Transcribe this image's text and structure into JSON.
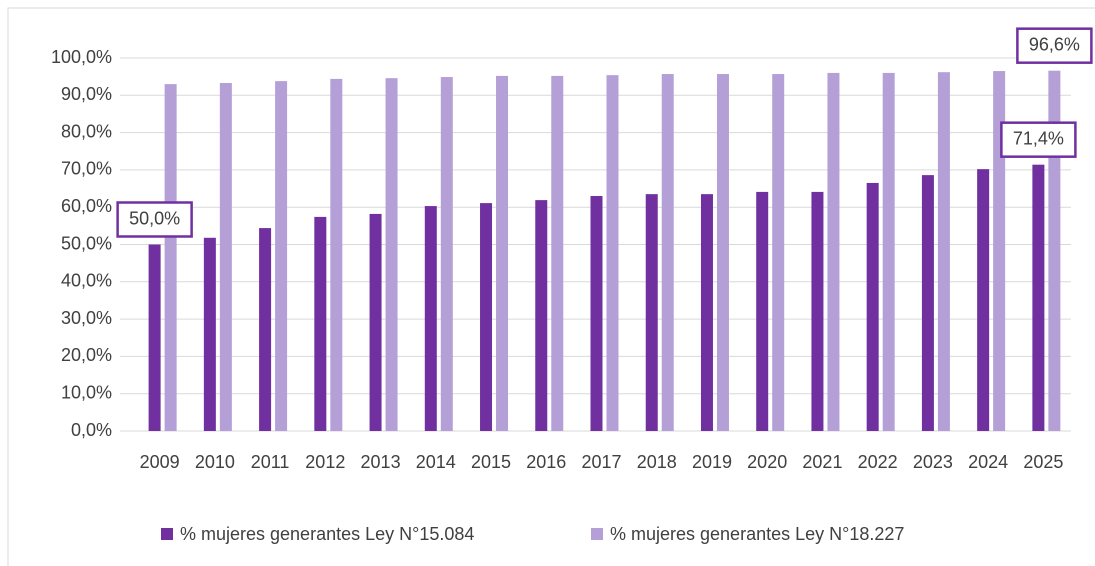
{
  "chart_data": {
    "type": "bar",
    "categories": [
      "2009",
      "2010",
      "2011",
      "2012",
      "2013",
      "2014",
      "2015",
      "2016",
      "2017",
      "2018",
      "2019",
      "2020",
      "2021",
      "2022",
      "2023",
      "2024",
      "2025"
    ],
    "series": [
      {
        "name": "% mujeres generantes Ley N°15.084",
        "color": "#7030a0",
        "values": [
          50.0,
          51.8,
          54.4,
          57.4,
          58.2,
          60.3,
          61.1,
          61.9,
          63.0,
          63.5,
          63.5,
          64.1,
          64.1,
          66.5,
          68.6,
          70.2,
          71.4
        ],
        "value_labels": [
          "50,0%",
          null,
          null,
          null,
          null,
          null,
          null,
          null,
          null,
          null,
          null,
          null,
          null,
          null,
          null,
          null,
          "71,4%"
        ]
      },
      {
        "name": "% mujeres generantes Ley N°18.227",
        "color": "#b4a0d6",
        "values": [
          93.0,
          93.3,
          93.8,
          94.4,
          94.6,
          94.9,
          95.2,
          95.2,
          95.4,
          95.7,
          95.7,
          95.7,
          96.0,
          96.0,
          96.2,
          96.5,
          96.6
        ],
        "value_labels": [
          null,
          null,
          null,
          null,
          null,
          null,
          null,
          null,
          null,
          null,
          null,
          null,
          null,
          null,
          null,
          null,
          "96,6%"
        ]
      }
    ],
    "ylim": [
      0,
      100
    ],
    "yticks": [
      {
        "value": 0,
        "label": "0,0%"
      },
      {
        "value": 10,
        "label": "10,0%"
      },
      {
        "value": 20,
        "label": "20,0%"
      },
      {
        "value": 30,
        "label": "30,0%"
      },
      {
        "value": 40,
        "label": "40,0%"
      },
      {
        "value": 50,
        "label": "50,0%"
      },
      {
        "value": 60,
        "label": "60,0%"
      },
      {
        "value": 70,
        "label": "70,0%"
      },
      {
        "value": 80,
        "label": "80,0%"
      },
      {
        "value": 90,
        "label": "90,0%"
      },
      {
        "value": 100,
        "label": "100,0%"
      }
    ],
    "grid": true,
    "legend": "bottom"
  }
}
